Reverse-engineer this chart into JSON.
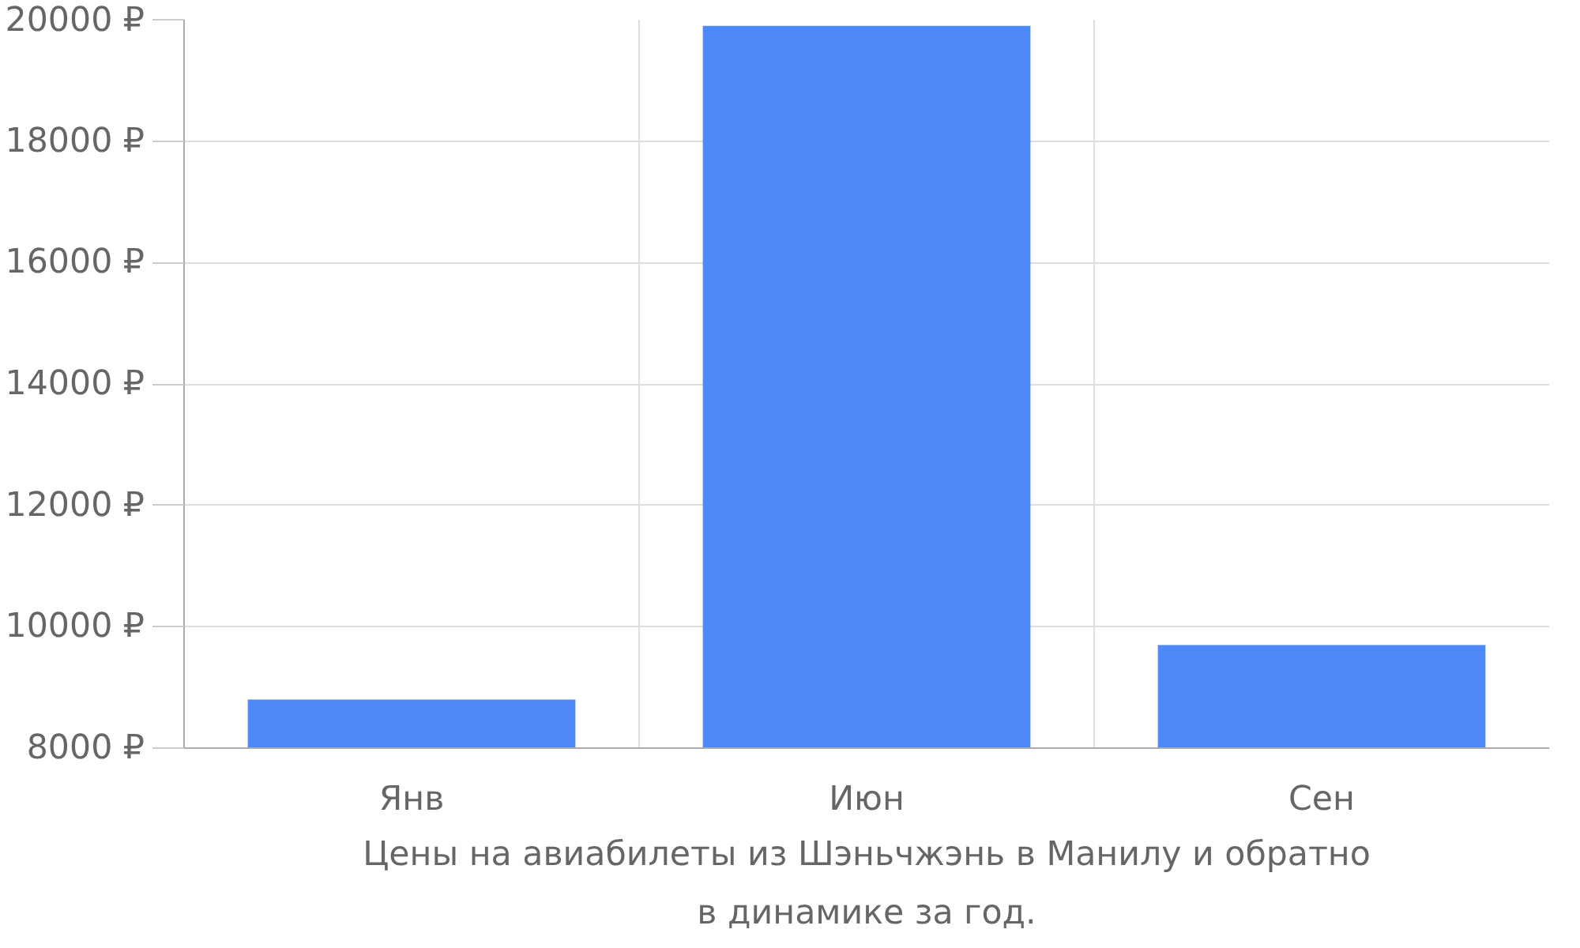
{
  "chart_data": {
    "type": "bar",
    "title": "Цены на авиабилеты из Шэньчжэнь в Манилу и обратно\nв динамике за год.",
    "categories": [
      "Янв",
      "Июн",
      "Сен"
    ],
    "values": [
      8800,
      19900,
      9700
    ],
    "color": "#4d89f9",
    "ylim": [
      8000,
      20000
    ],
    "yticks": [
      {
        "value": 8000,
        "label": "8000 ₽"
      },
      {
        "value": 10000,
        "label": "10000 ₽"
      },
      {
        "value": 12000,
        "label": "12000 ₽"
      },
      {
        "value": 14000,
        "label": "14000 ₽"
      },
      {
        "value": 16000,
        "label": "16000 ₽"
      },
      {
        "value": 18000,
        "label": "18000 ₽"
      },
      {
        "value": 20000,
        "label": "20000 ₽"
      }
    ],
    "grid": true
  }
}
